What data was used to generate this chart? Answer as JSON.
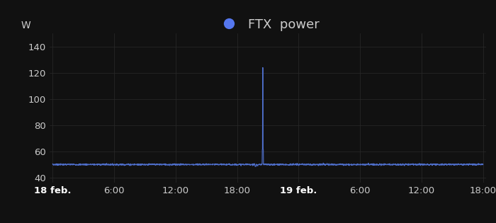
{
  "background_color": "#111111",
  "line_color": "#4f6fcc",
  "legend_dot_color": "#5577ee",
  "grid_color": "#2a2a2a",
  "text_color": "#cccccc",
  "title": "FTX  power",
  "ylabel": "W",
  "yticks": [
    40,
    60,
    80,
    100,
    120,
    140
  ],
  "ylim": [
    36,
    150
  ],
  "baseline": 50,
  "spike_x_hour": 20.5,
  "spike_y": 124,
  "total_hours": 42,
  "xtick_labels": [
    "18 feb.",
    "6:00",
    "12:00",
    "18:00",
    "19 feb.",
    "6:00",
    "12:00",
    "18:00"
  ],
  "xtick_positions": [
    0,
    6,
    12,
    18,
    24,
    30,
    36,
    42
  ],
  "xlim": [
    -0.3,
    42.3
  ],
  "title_fontsize": 13,
  "axis_fontsize": 10,
  "tick_fontsize": 9.5
}
